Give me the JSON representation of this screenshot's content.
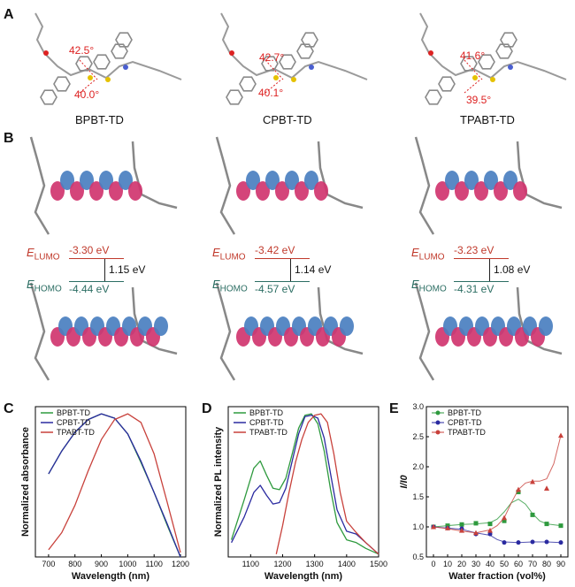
{
  "panels": {
    "A": "A",
    "B": "B",
    "C": "C",
    "D": "D",
    "E": "E"
  },
  "molecules": [
    {
      "name": "BPBT-TD",
      "angle_top": "42.5°",
      "angle_bottom": "40.0°",
      "lumo": "-3.30 eV",
      "homo": "-4.44 eV",
      "gap": "1.15 eV"
    },
    {
      "name": "CPBT-TD",
      "angle_top": "42.7°",
      "angle_bottom": "40.1°",
      "lumo": "-3.42 eV",
      "homo": "-4.57 eV",
      "gap": "1.14 eV"
    },
    {
      "name": "TPABT-TD",
      "angle_top": "41.6°",
      "angle_bottom": "39.5°",
      "lumo": "-3.23 eV",
      "homo": "-4.31 eV",
      "gap": "1.08 eV"
    }
  ],
  "energy_labels": {
    "e": "E",
    "lumo_sub": "LUMO",
    "homo_sub": "HOMO"
  },
  "colors": {
    "BPBT-TD": "#2e9a3e",
    "CPBT-TD": "#2a2aa0",
    "TPABT-TD": "#c8413b",
    "lumo": "#c0392b",
    "homo": "#2c6e63",
    "orbital_pink": "#d0356f",
    "orbital_blue": "#4a7fc0"
  },
  "chart_data": [
    {
      "type": "line",
      "xlabel": "Wavelength (nm)",
      "ylabel": "Normalized absorbance",
      "xlim": [
        650,
        1220
      ],
      "ylim": [
        0,
        1.05
      ],
      "xticks": [
        700,
        800,
        900,
        1000,
        1100,
        1200
      ],
      "legend": "top-left",
      "series": [
        {
          "name": "BPBT-TD",
          "x": [
            700,
            750,
            800,
            850,
            900,
            950,
            1000,
            1050,
            1100,
            1150,
            1200
          ],
          "values": [
            0.58,
            0.74,
            0.87,
            0.96,
            1.0,
            0.97,
            0.86,
            0.66,
            0.45,
            0.22,
            0.0
          ]
        },
        {
          "name": "CPBT-TD",
          "x": [
            700,
            750,
            800,
            850,
            900,
            950,
            1000,
            1050,
            1100,
            1150,
            1200
          ],
          "values": [
            0.58,
            0.74,
            0.87,
            0.96,
            1.0,
            0.97,
            0.86,
            0.67,
            0.45,
            0.23,
            0.0
          ]
        },
        {
          "name": "TPABT-TD",
          "x": [
            700,
            750,
            800,
            850,
            900,
            950,
            1000,
            1050,
            1100,
            1150,
            1200
          ],
          "values": [
            0.05,
            0.17,
            0.36,
            0.6,
            0.82,
            0.96,
            1.0,
            0.94,
            0.72,
            0.38,
            0.03
          ]
        }
      ]
    },
    {
      "type": "line",
      "xlabel": "Wavelength (nm)",
      "ylabel": "Normalized PL intensity",
      "xlim": [
        1030,
        1500
      ],
      "ylim": [
        0,
        1.05
      ],
      "xticks": [
        1100,
        1200,
        1300,
        1400,
        1500
      ],
      "legend": "top-left",
      "series": [
        {
          "name": "BPBT-TD",
          "x": [
            1040,
            1080,
            1110,
            1130,
            1150,
            1170,
            1190,
            1210,
            1230,
            1250,
            1270,
            1290,
            1310,
            1330,
            1350,
            1370,
            1400,
            1430,
            1460,
            1500
          ],
          "values": [
            0.12,
            0.4,
            0.62,
            0.67,
            0.57,
            0.48,
            0.47,
            0.55,
            0.72,
            0.9,
            0.99,
            1.0,
            0.93,
            0.74,
            0.47,
            0.24,
            0.12,
            0.1,
            0.06,
            0.02
          ]
        },
        {
          "name": "CPBT-TD",
          "x": [
            1040,
            1080,
            1110,
            1130,
            1150,
            1170,
            1190,
            1210,
            1230,
            1250,
            1270,
            1290,
            1310,
            1330,
            1350,
            1370,
            1400,
            1430,
            1460,
            1500
          ],
          "values": [
            0.1,
            0.28,
            0.45,
            0.5,
            0.43,
            0.37,
            0.38,
            0.48,
            0.67,
            0.86,
            0.98,
            0.99,
            0.97,
            0.83,
            0.58,
            0.33,
            0.18,
            0.16,
            0.1,
            0.02
          ]
        },
        {
          "name": "TPABT-TD",
          "x": [
            1180,
            1200,
            1220,
            1240,
            1260,
            1280,
            1300,
            1320,
            1340,
            1360,
            1380,
            1400,
            1430,
            1460,
            1500
          ],
          "values": [
            0.02,
            0.22,
            0.45,
            0.66,
            0.82,
            0.94,
            0.99,
            1.0,
            0.94,
            0.72,
            0.45,
            0.25,
            0.17,
            0.1,
            0.02
          ]
        }
      ]
    },
    {
      "type": "scatter",
      "xlabel": "Water fraction (vol%)",
      "ylabel": "I/I0",
      "xlim": [
        -5,
        95
      ],
      "ylim": [
        0.5,
        3.0
      ],
      "xticks": [
        0,
        10,
        20,
        30,
        40,
        50,
        60,
        70,
        80,
        90
      ],
      "yticks": [
        0.5,
        1.0,
        1.5,
        2.0,
        2.5,
        3.0
      ],
      "legend": "top-left",
      "series": [
        {
          "name": "BPBT-TD",
          "marker": "square",
          "x": [
            0,
            10,
            20,
            30,
            40,
            50,
            60,
            70,
            80,
            90
          ],
          "values": [
            1.0,
            1.02,
            1.04,
            1.06,
            1.05,
            1.1,
            1.58,
            1.2,
            1.05,
            1.02
          ],
          "fit_x": [
            0,
            10,
            20,
            30,
            40,
            45,
            50,
            55,
            60,
            65,
            70,
            75,
            80,
            90
          ],
          "fit_y": [
            1.0,
            1.02,
            1.04,
            1.05,
            1.07,
            1.13,
            1.25,
            1.4,
            1.46,
            1.38,
            1.22,
            1.1,
            1.05,
            1.02
          ]
        },
        {
          "name": "CPBT-TD",
          "marker": "circle",
          "x": [
            0,
            10,
            20,
            30,
            40,
            50,
            60,
            70,
            80,
            90
          ],
          "values": [
            1.0,
            0.98,
            0.97,
            0.88,
            0.88,
            0.74,
            0.74,
            0.75,
            0.75,
            0.74
          ],
          "fit_x": [
            0,
            10,
            20,
            30,
            40,
            45,
            50,
            60,
            70,
            80,
            90
          ],
          "fit_y": [
            1.0,
            0.98,
            0.96,
            0.9,
            0.86,
            0.79,
            0.75,
            0.74,
            0.75,
            0.75,
            0.74
          ]
        },
        {
          "name": "TPABT-TD",
          "marker": "triangle",
          "x": [
            0,
            10,
            20,
            30,
            40,
            50,
            60,
            70,
            80,
            90
          ],
          "values": [
            1.0,
            0.98,
            0.94,
            0.9,
            0.94,
            1.15,
            1.62,
            1.75,
            1.64,
            2.52
          ],
          "fit_x": [
            0,
            10,
            20,
            30,
            40,
            45,
            50,
            55,
            60,
            65,
            70,
            75,
            80,
            85,
            90
          ],
          "fit_y": [
            1.0,
            0.97,
            0.93,
            0.9,
            0.95,
            1.02,
            1.15,
            1.4,
            1.62,
            1.73,
            1.76,
            1.76,
            1.8,
            2.05,
            2.52
          ]
        }
      ]
    }
  ]
}
